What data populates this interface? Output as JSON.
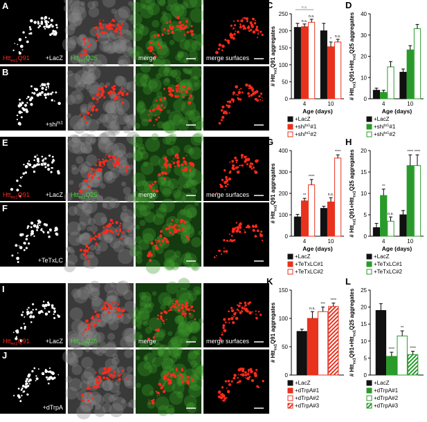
{
  "images": {
    "rows": [
      {
        "panel": "A",
        "protein": [
          "Htt",
          "ex1",
          "Q91"
        ],
        "construct": [
          "+LacZ"
        ],
        "protein2": [
          "Htt",
          "ex1",
          "Q25"
        ],
        "merge": "merge",
        "surfaces": "merge surfaces"
      },
      {
        "panel": "B",
        "construct": [
          "+shi",
          "ts1"
        ]
      },
      {
        "panel": "E",
        "protein": [
          "Htt",
          "ex1",
          "Q91"
        ],
        "construct": [
          "+LacZ"
        ],
        "protein2": [
          "Htt",
          "ex1",
          "Q25"
        ],
        "merge": "merge",
        "surfaces": "merge surfaces"
      },
      {
        "panel": "F",
        "construct": [
          "+TeTxLC"
        ]
      },
      {
        "panel": "I",
        "protein": [
          "Htt",
          "ex1",
          "Q91"
        ],
        "construct": [
          "+LacZ"
        ],
        "protein2": [
          "Htt",
          "ex1",
          "Q25"
        ],
        "merge": "merge",
        "surfaces": "merge surfaces"
      },
      {
        "panel": "J",
        "construct": [
          "+dTrpA"
        ]
      }
    ]
  },
  "chart_data": [
    {
      "type": "bar",
      "panel": "C",
      "ylabel": [
        "# Htt",
        "ex1",
        "Q91 aggregates"
      ],
      "xlabel": "Age (days)",
      "categories": [
        "4",
        "10"
      ],
      "ylim": [
        0,
        250
      ],
      "yticks": [
        0,
        50,
        100,
        150,
        200,
        250
      ],
      "bracket_label": "n.s.",
      "series": [
        {
          "name": [
            "+LacZ"
          ],
          "color": "#111111",
          "fill": "solid",
          "values": [
            210,
            200
          ],
          "errors": [
            12,
            22
          ]
        },
        {
          "name": [
            "+shi",
            "ts1",
            "#1"
          ],
          "color": "#e8321e",
          "fill": "solid",
          "values": [
            212,
            153
          ],
          "errors": [
            8,
            14
          ],
          "significance": [
            "n.s.",
            "*"
          ]
        },
        {
          "name": [
            "+shi",
            "ts1",
            "#2"
          ],
          "color": "#e8321e",
          "fill": "outline",
          "values": [
            225,
            167
          ],
          "errors": [
            9,
            8
          ],
          "significance": [
            "n.s.",
            "n.s."
          ]
        }
      ]
    },
    {
      "type": "bar",
      "panel": "D",
      "ylabel": [
        "# Htt",
        "ex1",
        "Q91+Htt",
        "ex1",
        "Q25 aggregates"
      ],
      "xlabel": "Age (days)",
      "categories": [
        "4",
        "10"
      ],
      "ylim": [
        0,
        40
      ],
      "yticks": [
        0,
        10,
        20,
        30,
        40
      ],
      "series": [
        {
          "name": [
            "+LacZ"
          ],
          "color": "#111111",
          "fill": "solid",
          "values": [
            4,
            12.5
          ],
          "errors": [
            1,
            1.5
          ]
        },
        {
          "name": [
            "+shi",
            "ts1",
            "#1"
          ],
          "color": "#2a9a2a",
          "fill": "solid",
          "values": [
            3,
            23
          ],
          "errors": [
            1,
            2
          ]
        },
        {
          "name": [
            "+shi",
            "ts1",
            "#2"
          ],
          "color": "#2a9a2a",
          "fill": "outline",
          "values": [
            15,
            33
          ],
          "errors": [
            2.5,
            2
          ]
        }
      ]
    },
    {
      "type": "bar",
      "panel": "G",
      "ylabel": [
        "# Htt",
        "ex1",
        "Q91 aggregates"
      ],
      "xlabel": "Age (days)",
      "categories": [
        "4",
        "10"
      ],
      "ylim": [
        0,
        400
      ],
      "yticks": [
        0,
        100,
        200,
        300,
        400
      ],
      "series": [
        {
          "name": [
            "+LacZ"
          ],
          "color": "#111111",
          "fill": "solid",
          "values": [
            90,
            130
          ],
          "errors": [
            12,
            10
          ]
        },
        {
          "name": [
            "+TeTxLC#1"
          ],
          "color": "#e8321e",
          "fill": "solid",
          "values": [
            165,
            160
          ],
          "errors": [
            12,
            20
          ],
          "significance": [
            "**",
            "n.s."
          ]
        },
        {
          "name": [
            "+TeTxLC#2"
          ],
          "color": "#e8321e",
          "fill": "outline",
          "values": [
            240,
            365
          ],
          "errors": [
            25,
            15
          ],
          "significance": [
            "****",
            "****"
          ]
        }
      ]
    },
    {
      "type": "bar",
      "panel": "H",
      "ylabel": [
        "# Htt",
        "ex1",
        "Q91+Htt",
        "ex1",
        "Q25 aggregates"
      ],
      "xlabel": "Age (days)",
      "categories": [
        "4",
        "10"
      ],
      "ylim": [
        0,
        20
      ],
      "yticks": [
        0,
        5,
        10,
        15,
        20
      ],
      "series": [
        {
          "name": [
            "+LacZ"
          ],
          "color": "#111111",
          "fill": "solid",
          "values": [
            2,
            5
          ],
          "errors": [
            1,
            1
          ]
        },
        {
          "name": [
            "+TeTxLC#1"
          ],
          "color": "#2a9a2a",
          "fill": "solid",
          "values": [
            9.5,
            16.5
          ],
          "errors": [
            1.5,
            2.5
          ],
          "significance": [
            "**",
            "****"
          ]
        },
        {
          "name": [
            "+TeTxLC#2"
          ],
          "color": "#2a9a2a",
          "fill": "outline",
          "values": [
            3.5,
            16.5
          ],
          "errors": [
            1,
            2.5
          ],
          "significance": [
            "n.s.",
            "****"
          ]
        }
      ]
    },
    {
      "type": "bar",
      "panel": "K",
      "ylabel": [
        "# Htt",
        "ex1",
        "Q91 aggregates"
      ],
      "categories": [
        null
      ],
      "ylim": [
        0,
        150
      ],
      "yticks": [
        0,
        50,
        100,
        150
      ],
      "series": [
        {
          "name": [
            "+LacZ"
          ],
          "color": "#111111",
          "fill": "solid",
          "values": [
            77
          ],
          "errors": [
            4
          ]
        },
        {
          "name": [
            "+dTrpA#1"
          ],
          "color": "#e8321e",
          "fill": "solid",
          "values": [
            100
          ],
          "errors": [
            12
          ],
          "significance": [
            "n.s."
          ]
        },
        {
          "name": [
            "+dTrpA#2"
          ],
          "color": "#e8321e",
          "fill": "outline",
          "values": [
            112
          ],
          "errors": [
            8
          ],
          "significance": [
            "***"
          ]
        },
        {
          "name": [
            "+dTrpA#3"
          ],
          "color": "#e8321e",
          "fill": "hatch",
          "values": [
            121
          ],
          "errors": [
            6
          ],
          "significance": [
            "****"
          ]
        }
      ]
    },
    {
      "type": "bar",
      "panel": "L",
      "ylabel": [
        "# Htt",
        "ex1",
        "Q91+Htt",
        "ex1",
        "Q25 aggregates"
      ],
      "categories": [
        null
      ],
      "ylim": [
        0,
        25
      ],
      "yticks": [
        0,
        5,
        10,
        15,
        20,
        25
      ],
      "series": [
        {
          "name": [
            "+LacZ"
          ],
          "color": "#111111",
          "fill": "solid",
          "values": [
            19
          ],
          "errors": [
            2
          ]
        },
        {
          "name": [
            "+dTrpA#1"
          ],
          "color": "#2a9a2a",
          "fill": "solid",
          "values": [
            5.5
          ],
          "errors": [
            1.2
          ],
          "significance": [
            "****"
          ]
        },
        {
          "name": [
            "+dTrpA#2"
          ],
          "color": "#2a9a2a",
          "fill": "outline",
          "values": [
            11.5
          ],
          "errors": [
            1.5
          ],
          "significance": [
            "**"
          ]
        },
        {
          "name": [
            "+dTrpA#3"
          ],
          "color": "#2a9a2a",
          "fill": "hatch",
          "values": [
            6
          ],
          "errors": [
            1
          ],
          "significance": [
            "****"
          ]
        }
      ]
    }
  ]
}
